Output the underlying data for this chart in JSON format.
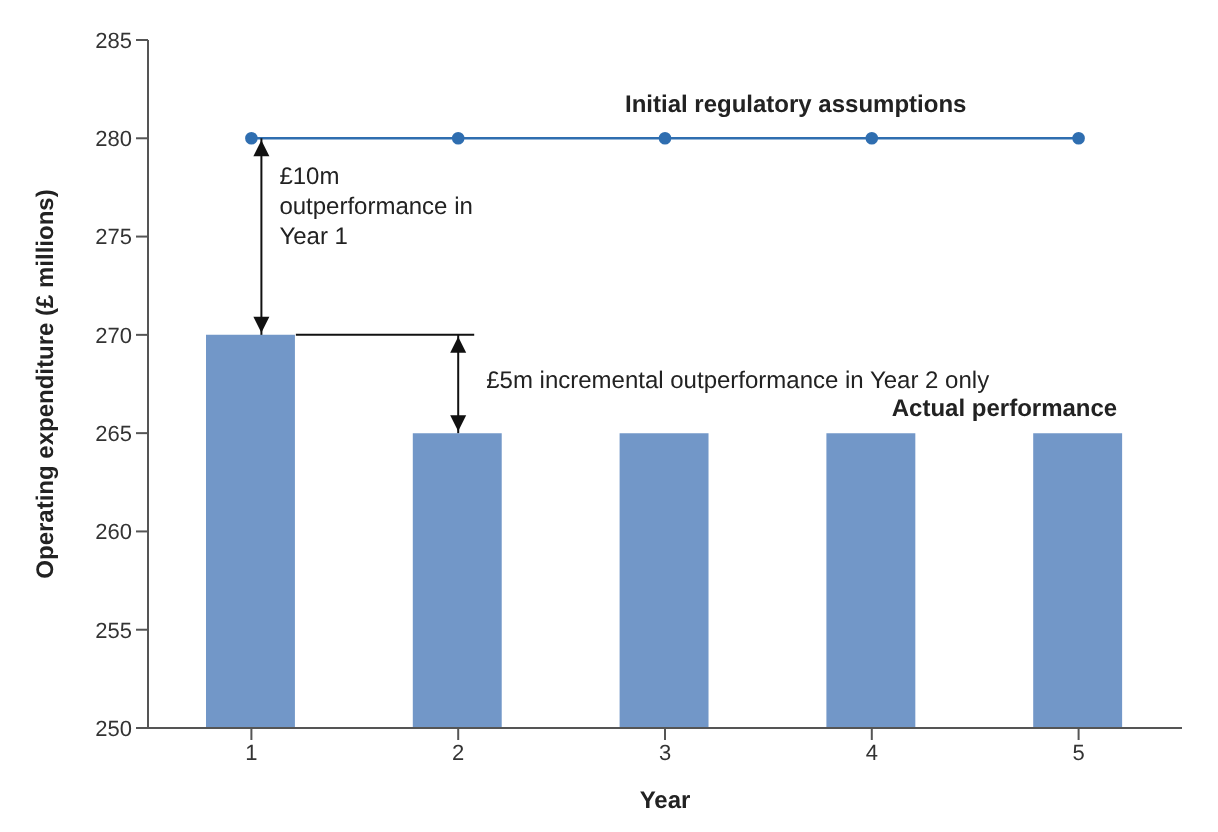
{
  "chart_data": {
    "type": "bar",
    "xlabel": "Year",
    "ylabel": "Operating expenditure (£ millions)",
    "categories": [
      "1",
      "2",
      "3",
      "4",
      "5"
    ],
    "series": [
      {
        "name": "Initial regulatory assumptions",
        "type": "line",
        "color": "#2f6eb0",
        "values": [
          280,
          280,
          280,
          280,
          280
        ]
      },
      {
        "name": "Actual performance",
        "color": "#7297c8",
        "values": [
          270,
          265,
          265,
          265,
          265
        ]
      }
    ],
    "ylim": [
      250,
      285
    ],
    "yticks": [
      250,
      255,
      260,
      265,
      270,
      275,
      280,
      285
    ],
    "marker": "circle",
    "annotations": [
      {
        "text": "£10m outperformance in Year 1",
        "x": "1",
        "y": 270
      },
      "£5m incremental outperformance in Year 2 only"
    ]
  }
}
